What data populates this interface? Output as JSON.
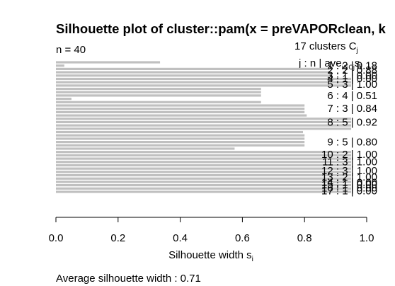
{
  "chart_data": {
    "type": "bar",
    "orientation": "horizontal",
    "title": "Silhouette plot of cluster::pam(x = preVAPORclean, k",
    "n_label": "n = 40",
    "clusters_label": "17  clusters  C",
    "clusters_sub": "j",
    "header_label": "j :  n  | ave",
    "header_sub_n": "j",
    "header_sub_ave": "i∈Cj",
    "header_stat": "s",
    "header_stat_sub": "i",
    "xlabel": "Silhouette width s",
    "xlabel_sub": "i",
    "xlim": [
      0,
      1.0
    ],
    "ticks": [
      "0.0",
      "0.2",
      "0.4",
      "0.6",
      "0.8",
      "1.0"
    ],
    "footer": "Average silhouette width :  0.71",
    "bar_color": "#c0c0c0",
    "bars": [
      0.335,
      0.027,
      0.88,
      0.88,
      0.88,
      0.95,
      0.95,
      0.95,
      0.66,
      0.66,
      0.66,
      0.05,
      0.66,
      0.8,
      0.8,
      0.8,
      0.807,
      0.95,
      0.95,
      0.95,
      0.95,
      0.795,
      0.8,
      0.8,
      0.8,
      0.8,
      0.575,
      0.95,
      0.95,
      0.95,
      0.95,
      0.95,
      0.95,
      0.95,
      0.95,
      0.95,
      0.95,
      0.95,
      0.95,
      0.95
    ],
    "cluster_labels": [
      {
        "text": "1 :  2  |  0.18",
        "y": 0.92
      },
      {
        "text": "2 :  2  |  0.88",
        "y": 2.3
      },
      {
        "text": "3 :  1  |  0.00",
        "y": 3.9
      },
      {
        "text": "4 :  1  |  0.00",
        "y": 4.85
      },
      {
        "text": "5 :  3  |  1.00",
        "y": 6.6
      },
      {
        "text": "6 :  4  |  0.51",
        "y": 10.0
      },
      {
        "text": "7 :  3  |  0.84",
        "y": 13.85
      },
      {
        "text": "8 :  5  |  0.92",
        "y": 18.05
      },
      {
        "text": "9 :  5  |  0.80",
        "y": 23.95
      },
      {
        "text": "10 :  2  |  1.00",
        "y": 27.75
      },
      {
        "text": "11 :  3  |  1.00",
        "y": 29.95
      },
      {
        "text": "12 :  3  |  1.00",
        "y": 32.65
      },
      {
        "text": "13 :  2  |  1.00",
        "y": 34.5
      },
      {
        "text": "14 :  1  |  0.00",
        "y": 36.1
      },
      {
        "text": "15 :  1  |  0.00",
        "y": 36.8
      },
      {
        "text": "16 :  1  |  0.00",
        "y": 37.8
      },
      {
        "text": "17 :  1  |  0.00",
        "y": 38.65
      }
    ]
  }
}
